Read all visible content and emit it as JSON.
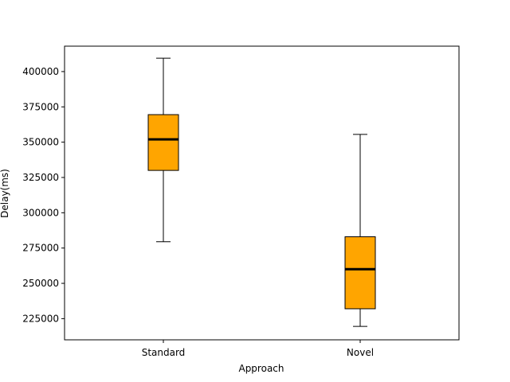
{
  "chart_data": {
    "type": "box",
    "title": "",
    "xlabel": "Approach",
    "ylabel": "Delay(ms)",
    "categories": [
      "Standard",
      "Novel"
    ],
    "boxes": [
      {
        "category": "Standard",
        "whisker_low": 279500,
        "q1": 330000,
        "median": 352000,
        "q3": 369500,
        "whisker_high": 409500
      },
      {
        "category": "Novel",
        "whisker_low": 219500,
        "q1": 232000,
        "median": 260000,
        "q3": 283000,
        "whisker_high": 355500
      }
    ],
    "ylim": [
      210000,
      418000
    ],
    "yticks": [
      225000,
      250000,
      275000,
      300000,
      325000,
      350000,
      375000,
      400000
    ],
    "ytick_labels": [
      "225000",
      "250000",
      "275000",
      "300000",
      "325000",
      "350000",
      "375000",
      "400000"
    ],
    "colors": {
      "box_fill": "#ffa500",
      "box_edge": "#000000",
      "median": "#000000",
      "axes": "#000000",
      "background": "#ffffff"
    },
    "grid": false,
    "legend": "none"
  }
}
